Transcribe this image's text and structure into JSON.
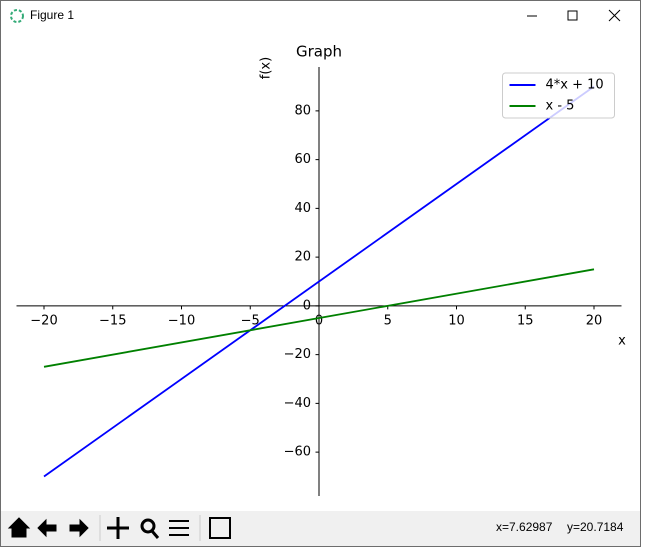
{
  "window": {
    "title": "Figure 1",
    "status_x": "x=7.62987",
    "status_y": "y=20.7184"
  },
  "chart_data": {
    "type": "line",
    "title": "Graph",
    "x_label": "x",
    "y_label": "f(x)",
    "x": [
      -20,
      20
    ],
    "series": [
      {
        "name": "4*x + 10",
        "color": "#0000ff",
        "values": [
          -70,
          90
        ]
      },
      {
        "name": "x - 5",
        "color": "#008000",
        "values": [
          -25,
          15
        ]
      }
    ],
    "xlim": [
      -22,
      22
    ],
    "ylim": [
      -78,
      98
    ],
    "xticks": [
      {
        "value": -20,
        "label": "−20"
      },
      {
        "value": -15,
        "label": "−15"
      },
      {
        "value": -10,
        "label": "−10"
      },
      {
        "value": -5,
        "label": "−5"
      },
      0,
      5,
      10,
      15,
      20
    ],
    "yticks": [
      {
        "value": -60,
        "label": "−60"
      },
      {
        "value": -40,
        "label": "−40"
      },
      {
        "value": -20,
        "label": "−20"
      },
      0,
      20,
      40,
      60,
      80
    ],
    "legend": "upper right"
  }
}
